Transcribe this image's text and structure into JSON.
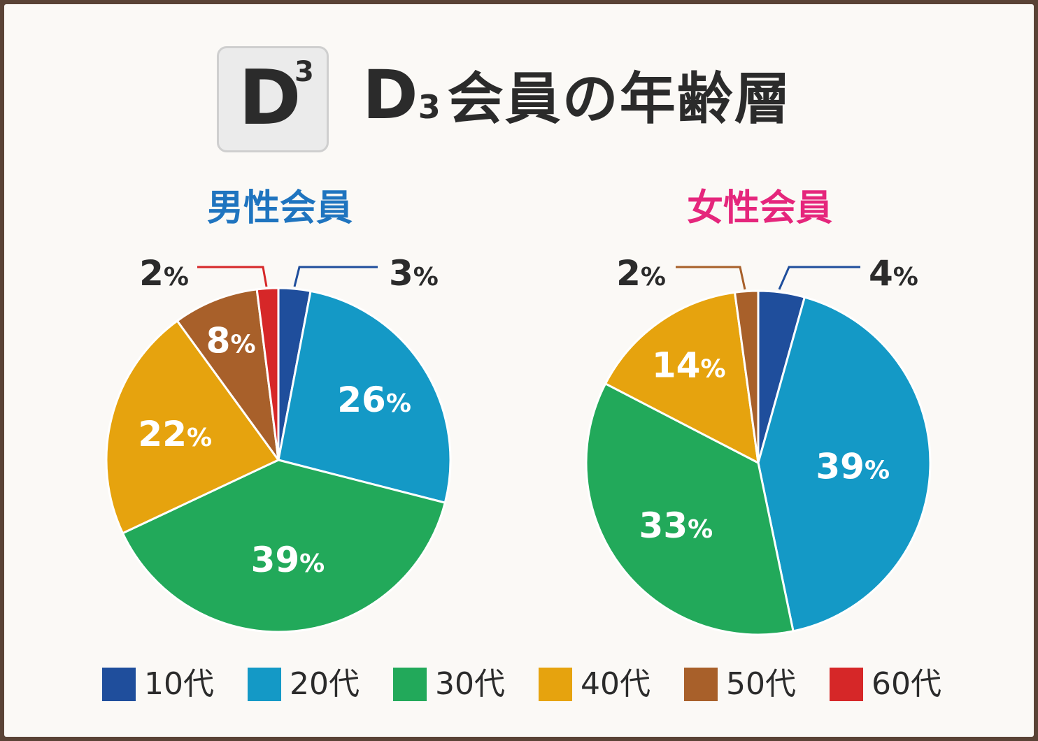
{
  "header": {
    "logo_letter": "D",
    "logo_sup": "3",
    "title_d": "D",
    "title_sub": "3",
    "title_rest": "会員の年齢層"
  },
  "colors": {
    "10代": "#1f4e9c",
    "20代": "#1499c6",
    "30代": "#22a95a",
    "40代": "#e6a30e",
    "50代": "#a8602a",
    "60代": "#d62728",
    "men_title": "#1f74bf",
    "women_title": "#e5267c"
  },
  "legend": [
    "10代",
    "20代",
    "30代",
    "40代",
    "50代",
    "60代"
  ],
  "chart_data": [
    {
      "type": "pie",
      "title": "男性会員",
      "categories": [
        "10代",
        "20代",
        "30代",
        "40代",
        "50代",
        "60代"
      ],
      "values": [
        3,
        26,
        39,
        22,
        8,
        2
      ],
      "labels": [
        "3%",
        "26%",
        "39%",
        "22%",
        "8%",
        "2%"
      ]
    },
    {
      "type": "pie",
      "title": "女性会員",
      "categories": [
        "10代",
        "20代",
        "30代",
        "40代",
        "50代"
      ],
      "values": [
        4,
        39,
        33,
        14,
        2
      ],
      "labels": [
        "4%",
        "39%",
        "33%",
        "14%",
        "2%"
      ]
    }
  ]
}
